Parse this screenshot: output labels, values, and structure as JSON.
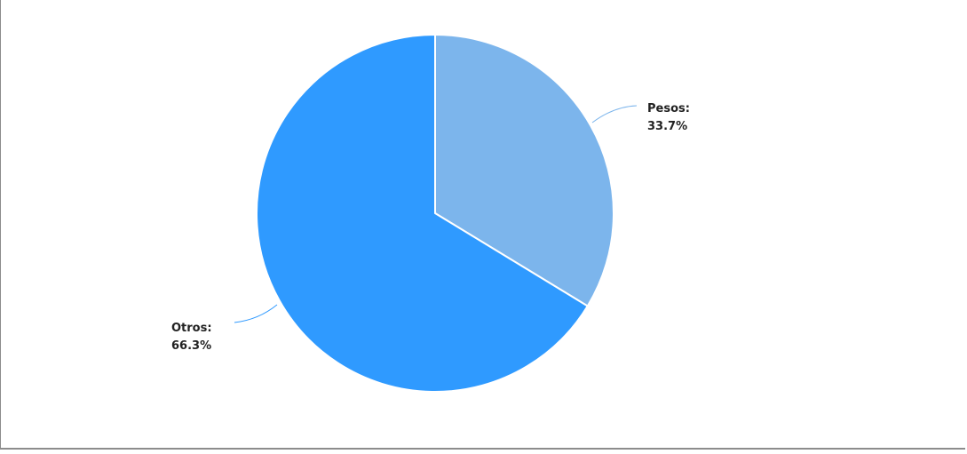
{
  "chart_data": {
    "type": "pie",
    "slices": [
      {
        "label": "Pesos:",
        "value_label": "33.7%",
        "value": 33.7,
        "color": "#7cb5ec"
      },
      {
        "label": "Otros:",
        "value_label": "66.3%",
        "value": 66.3,
        "color": "#2f9aff"
      }
    ],
    "start_position": "top",
    "direction": "clockwise",
    "slice_border_color": "#ffffff",
    "legend": "none"
  }
}
